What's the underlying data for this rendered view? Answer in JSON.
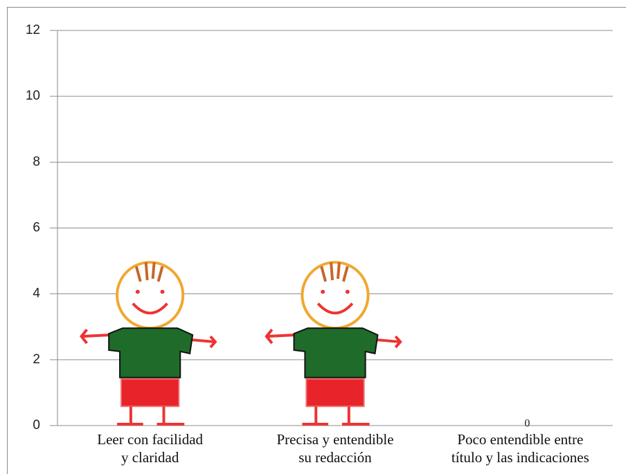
{
  "chart_data": {
    "type": "pictograph",
    "categories": [
      "Leer con facilidad\ny claridad",
      "Precisa y entendible\nsu redacción",
      "Poco entendible entre\ntítulo y las indicaciones"
    ],
    "values": [
      5,
      5,
      0
    ],
    "ylim": [
      0,
      12
    ],
    "yticks": [
      0,
      2,
      4,
      6,
      8,
      10,
      12
    ],
    "grid": true
  }
}
